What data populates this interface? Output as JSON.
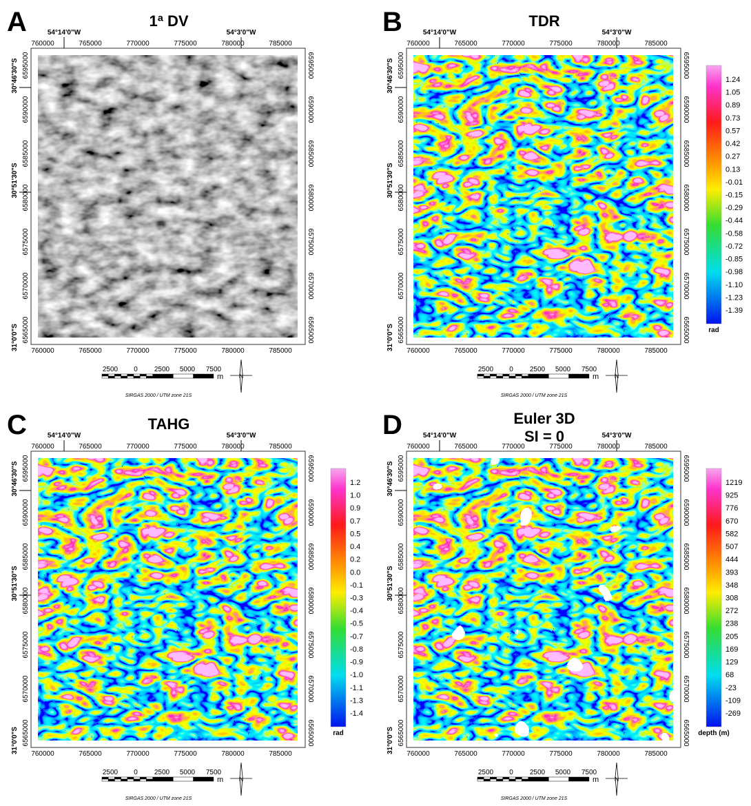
{
  "panels": [
    {
      "letter": "A",
      "title": "1ª DV"
    },
    {
      "letter": "B",
      "title": "TDR",
      "colorbar": {
        "labels": [
          "1.24",
          "1.05",
          "0.89",
          "0.73",
          "0.57",
          "0.42",
          "0.27",
          "0.13",
          "-0.01",
          "-0.15",
          "-0.29",
          "-0.44",
          "-0.58",
          "-0.72",
          "-0.85",
          "-0.98",
          "-1.10",
          "-1.23",
          "-1.39"
        ],
        "unit": "rad"
      }
    },
    {
      "letter": "C",
      "title": "TAHG",
      "colorbar": {
        "labels": [
          "1.2",
          "1.0",
          "0.9",
          "0.7",
          "0.5",
          "0.4",
          "0.2",
          "0.0",
          "-0.1",
          "-0.3",
          "-0.4",
          "-0.5",
          "-0.7",
          "-0.8",
          "-0.9",
          "-1.0",
          "-1.1",
          "-1.3",
          "-1.4"
        ],
        "unit": "rad"
      }
    },
    {
      "letter": "D",
      "title": "Euler 3D",
      "subtitle": "SI = 0",
      "colorbar": {
        "labels": [
          "1219",
          "925",
          "776",
          "670",
          "582",
          "507",
          "444",
          "393",
          "348",
          "308",
          "272",
          "238",
          "205",
          "169",
          "129",
          "68",
          "-23",
          "-109",
          "-269"
        ],
        "unit": "depth (m)"
      }
    }
  ],
  "map_axes": {
    "eastings": [
      "760000",
      "765000",
      "770000",
      "775000",
      "780000",
      "785000"
    ],
    "northings": [
      "6595000",
      "6590000",
      "6585000",
      "6580000",
      "6575000",
      "6570000",
      "6565000"
    ],
    "lon_labels": [
      "54°14'0\"W",
      "54°3'0\"W"
    ],
    "lat_labels": [
      "30°46'30\"S",
      "30°51'30\"S",
      "31°0'0\"S"
    ]
  },
  "scale_bar": {
    "labels": [
      "2500",
      "0",
      "2500",
      "5000",
      "7500"
    ],
    "unit": "m"
  },
  "north_label": "N",
  "crs": "SIRGAS 2000 / UTM zone 21S"
}
